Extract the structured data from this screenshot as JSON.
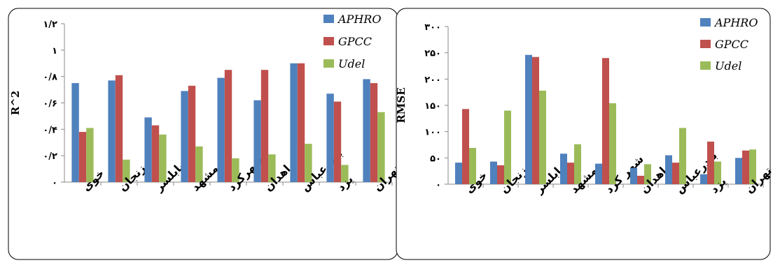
{
  "colors": {
    "APHRO": "#4f81bd",
    "GPCC": "#c0504d",
    "Udel": "#9bbb59"
  },
  "chart_data": [
    {
      "type": "bar",
      "title": "",
      "xlabel": "",
      "ylabel": "R^2",
      "ylim": [
        0,
        1.2
      ],
      "ytick_values": [
        0,
        0.2,
        0.4,
        0.6,
        0.8,
        1,
        1.2
      ],
      "ytick_labels": [
        "٠",
        "٠/٢",
        "٠/۴",
        "٠/۶",
        "٠/٨",
        "١",
        "١/٢"
      ],
      "legend_position": "top-right",
      "categories": [
        "خوی",
        "زنجان",
        "بابلسر",
        "مشهد",
        "شهرکرد",
        "زاهدان",
        "بندرعباس",
        "یزد",
        "تهران"
      ],
      "series": [
        {
          "name": "APHRO",
          "values": [
            0.75,
            0.77,
            0.49,
            0.69,
            0.79,
            0.62,
            0.9,
            0.67,
            0.78
          ]
        },
        {
          "name": "GPCC",
          "values": [
            0.38,
            0.81,
            0.43,
            0.73,
            0.85,
            0.85,
            0.9,
            0.61,
            0.75
          ]
        },
        {
          "name": "Udel",
          "values": [
            0.41,
            0.17,
            0.36,
            0.27,
            0.18,
            0.21,
            0.29,
            0.13,
            0.53
          ]
        }
      ]
    },
    {
      "type": "bar",
      "title": "",
      "xlabel": "",
      "ylabel": "RMSE",
      "ylim": [
        0,
        300
      ],
      "ytick_values": [
        0,
        50,
        100,
        150,
        200,
        250,
        300
      ],
      "ytick_labels": [
        "٠",
        "۵٠",
        "١٠٠",
        "١۵٠",
        "٢٠٠",
        "٢۵٠",
        "٣٠٠"
      ],
      "legend_position": "top-right",
      "categories": [
        "خوی",
        "زنجان",
        "بابلسر",
        "مشهد",
        "شهر کرد",
        "زاهدان",
        "بندرعباس",
        "یزد",
        "تهران"
      ],
      "series": [
        {
          "name": "APHRO",
          "values": [
            41,
            43,
            246,
            58,
            39,
            31,
            55,
            19,
            50
          ]
        },
        {
          "name": "GPCC",
          "values": [
            143,
            36,
            242,
            41,
            240,
            16,
            41,
            81,
            64
          ]
        },
        {
          "name": "Udel",
          "values": [
            69,
            140,
            178,
            76,
            154,
            38,
            107,
            43,
            66
          ]
        }
      ]
    }
  ]
}
